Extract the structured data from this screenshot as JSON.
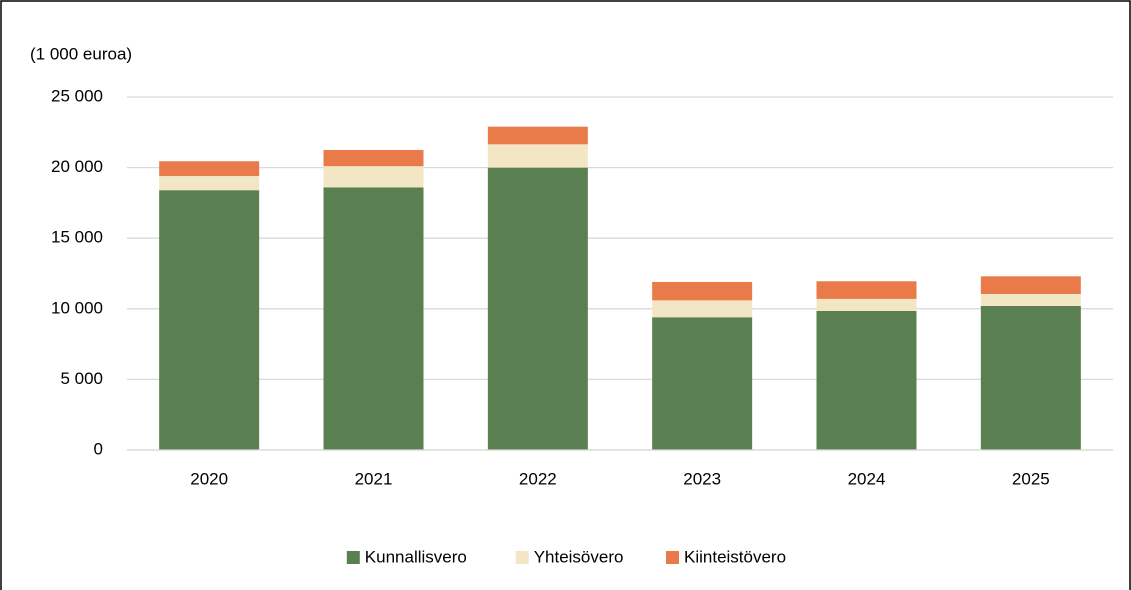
{
  "chart_data": {
    "type": "stacked_bar",
    "y_axis_label": "(1 000 euroa)",
    "categories": [
      "2020",
      "2021",
      "2022",
      "2023",
      "2024",
      "2025"
    ],
    "series": [
      {
        "name": "Kunnallisvero",
        "color": "#5a7f50",
        "values": [
          18400,
          18600,
          20000,
          9400,
          9850,
          10200
        ]
      },
      {
        "name": "Yhteisövero",
        "color": "#f2e6c4",
        "values": [
          1000,
          1500,
          1650,
          1200,
          850,
          850
        ]
      },
      {
        "name": "Kiinteistövero",
        "color": "#e97b4a",
        "values": [
          1050,
          1150,
          1250,
          1300,
          1250,
          1250
        ]
      }
    ],
    "ylim": [
      0,
      25000
    ],
    "yticks": [
      0,
      {
        "value": 5000,
        "label": "5 000"
      },
      {
        "value": 10000,
        "label": "10 000"
      },
      {
        "value": 15000,
        "label": "15 000"
      },
      {
        "value": 20000,
        "label": "20 000"
      },
      {
        "value": 25000,
        "label": "25 000"
      }
    ],
    "grid": true,
    "legend": "bottom"
  }
}
